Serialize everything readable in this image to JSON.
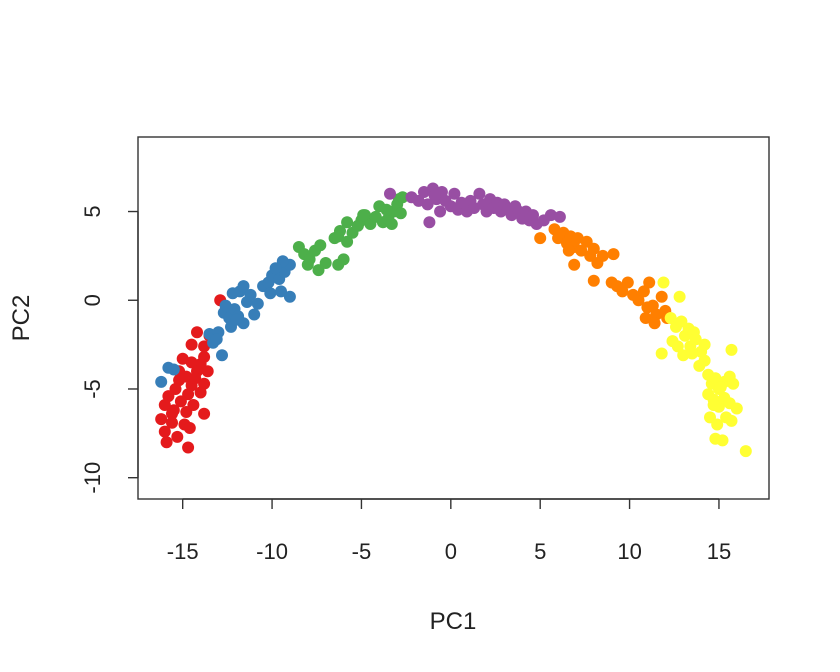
{
  "chart_data": {
    "type": "scatter",
    "title": "",
    "xlabel": "PC1",
    "ylabel": "PC2",
    "xlim": [
      -17.5,
      17.8
    ],
    "ylim": [
      -11.2,
      9.2
    ],
    "xticks": [
      -15,
      -10,
      -5,
      0,
      5,
      10,
      15
    ],
    "xtick_labels": [
      "-15",
      "-10",
      "-5",
      "0",
      "5",
      "10",
      "15"
    ],
    "yticks": [
      -10,
      -5,
      0,
      5
    ],
    "ytick_labels": [
      "-10",
      "-5",
      "0",
      "5"
    ],
    "grid": false,
    "legend": "none",
    "series": [
      {
        "color": "#e41a1c",
        "points": [
          [
            -12.9,
            0.0
          ],
          [
            -13.5,
            -2.0
          ],
          [
            -13.8,
            -2.6
          ],
          [
            -14.2,
            -1.8
          ],
          [
            -13.8,
            -3.2
          ],
          [
            -14.5,
            -2.5
          ],
          [
            -14.0,
            -3.6
          ],
          [
            -13.6,
            -4.0
          ],
          [
            -14.5,
            -3.5
          ],
          [
            -15.0,
            -3.3
          ],
          [
            -14.2,
            -4.0
          ],
          [
            -14.8,
            -4.3
          ],
          [
            -13.8,
            -4.7
          ],
          [
            -14.5,
            -4.8
          ],
          [
            -15.2,
            -4.5
          ],
          [
            -14.0,
            -5.2
          ],
          [
            -14.7,
            -5.3
          ],
          [
            -15.4,
            -5.0
          ],
          [
            -15.8,
            -5.4
          ],
          [
            -15.1,
            -5.7
          ],
          [
            -14.4,
            -5.9
          ],
          [
            -16.0,
            -5.9
          ],
          [
            -15.5,
            -6.2
          ],
          [
            -14.8,
            -6.3
          ],
          [
            -13.8,
            -6.4
          ],
          [
            -16.2,
            -6.7
          ],
          [
            -15.6,
            -6.9
          ],
          [
            -14.9,
            -7.0
          ],
          [
            -16.0,
            -7.4
          ],
          [
            -15.3,
            -7.7
          ],
          [
            -15.9,
            -8.0
          ],
          [
            -14.7,
            -8.3
          ],
          [
            -15.2,
            -4.0
          ],
          [
            -14.3,
            -4.4
          ],
          [
            -15.6,
            -6.4
          ],
          [
            -14.6,
            -7.2
          ]
        ]
      },
      {
        "color": "#377eb8",
        "points": [
          [
            -16.2,
            -4.6
          ],
          [
            -15.8,
            -3.8
          ],
          [
            -15.5,
            -3.9
          ],
          [
            -13.3,
            -2.4
          ],
          [
            -13.5,
            -1.9
          ],
          [
            -13.0,
            -1.8
          ],
          [
            -12.8,
            -3.1
          ],
          [
            -12.7,
            -0.7
          ],
          [
            -12.4,
            -1.0
          ],
          [
            -12.3,
            -1.5
          ],
          [
            -12.6,
            -0.3
          ],
          [
            -12.1,
            -0.5
          ],
          [
            -11.9,
            -0.9
          ],
          [
            -11.6,
            -1.3
          ],
          [
            -12.2,
            0.4
          ],
          [
            -11.8,
            0.5
          ],
          [
            -11.6,
            0.8
          ],
          [
            -11.2,
            0.3
          ],
          [
            -11.0,
            -0.8
          ],
          [
            -10.8,
            -0.2
          ],
          [
            -10.5,
            0.8
          ],
          [
            -10.2,
            1.0
          ],
          [
            -10.0,
            1.4
          ],
          [
            -9.6,
            1.2
          ],
          [
            -9.3,
            1.6
          ],
          [
            -9.0,
            2.0
          ],
          [
            -9.4,
            2.2
          ],
          [
            -9.8,
            1.8
          ],
          [
            -10.1,
            0.4
          ],
          [
            -9.5,
            0.5
          ],
          [
            -9.0,
            0.2
          ],
          [
            -11.4,
            -0.1
          ],
          [
            -12.0,
            -1.1
          ],
          [
            -13.1,
            -2.2
          ]
        ]
      },
      {
        "color": "#4daf4a",
        "points": [
          [
            -8.5,
            3.0
          ],
          [
            -8.2,
            2.6
          ],
          [
            -7.9,
            2.3
          ],
          [
            -7.6,
            2.8
          ],
          [
            -7.3,
            3.1
          ],
          [
            -7.0,
            2.1
          ],
          [
            -7.4,
            1.7
          ],
          [
            -8.0,
            2.0
          ],
          [
            -6.5,
            3.5
          ],
          [
            -6.2,
            3.9
          ],
          [
            -5.8,
            4.4
          ],
          [
            -6.3,
            3.6
          ],
          [
            -5.5,
            3.8
          ],
          [
            -5.8,
            3.3
          ],
          [
            -6.0,
            2.3
          ],
          [
            -6.3,
            2.0
          ],
          [
            -5.0,
            4.5
          ],
          [
            -4.8,
            4.8
          ],
          [
            -5.2,
            4.2
          ],
          [
            -4.5,
            4.3
          ],
          [
            -4.2,
            4.7
          ],
          [
            -4.0,
            5.3
          ],
          [
            -3.8,
            4.4
          ],
          [
            -3.5,
            4.6
          ],
          [
            -3.2,
            5.0
          ],
          [
            -3.0,
            5.4
          ],
          [
            -2.9,
            5.7
          ],
          [
            -2.7,
            5.8
          ],
          [
            -3.3,
            4.3
          ],
          [
            -3.6,
            5.1
          ],
          [
            -2.8,
            4.9
          ],
          [
            -4.9,
            4.8
          ]
        ]
      },
      {
        "color": "#984ea3",
        "points": [
          [
            -3.4,
            6.0
          ],
          [
            -2.2,
            5.8
          ],
          [
            -1.8,
            5.6
          ],
          [
            -1.5,
            6.1
          ],
          [
            -1.3,
            5.4
          ],
          [
            -1.0,
            6.3
          ],
          [
            -0.8,
            5.7
          ],
          [
            -0.6,
            5.0
          ],
          [
            -0.5,
            6.1
          ],
          [
            -0.3,
            5.6
          ],
          [
            -1.2,
            4.4
          ],
          [
            0.0,
            5.3
          ],
          [
            0.2,
            6.0
          ],
          [
            0.4,
            5.1
          ],
          [
            0.6,
            5.5
          ],
          [
            0.9,
            5.0
          ],
          [
            1.1,
            5.6
          ],
          [
            1.3,
            5.2
          ],
          [
            1.6,
            6.0
          ],
          [
            1.8,
            5.4
          ],
          [
            2.0,
            5.0
          ],
          [
            2.2,
            5.7
          ],
          [
            2.4,
            5.2
          ],
          [
            2.6,
            5.5
          ],
          [
            2.8,
            5.0
          ],
          [
            3.0,
            5.4
          ],
          [
            3.2,
            5.1
          ],
          [
            3.4,
            4.8
          ],
          [
            3.6,
            5.3
          ],
          [
            3.8,
            5.0
          ],
          [
            4.0,
            4.6
          ],
          [
            4.2,
            5.0
          ],
          [
            4.4,
            4.5
          ],
          [
            4.6,
            4.8
          ],
          [
            4.8,
            4.3
          ],
          [
            5.2,
            4.5
          ],
          [
            5.6,
            4.8
          ],
          [
            6.1,
            4.7
          ],
          [
            -0.9,
            5.9
          ]
        ]
      },
      {
        "color": "#ff7f00",
        "points": [
          [
            5.0,
            3.5
          ],
          [
            5.8,
            4.0
          ],
          [
            6.0,
            3.5
          ],
          [
            6.3,
            3.8
          ],
          [
            6.5,
            3.2
          ],
          [
            6.7,
            3.6
          ],
          [
            6.9,
            3.0
          ],
          [
            7.1,
            3.5
          ],
          [
            7.3,
            2.8
          ],
          [
            7.6,
            3.3
          ],
          [
            7.8,
            2.5
          ],
          [
            8.0,
            2.9
          ],
          [
            8.2,
            2.1
          ],
          [
            8.5,
            2.5
          ],
          [
            9.0,
            1.0
          ],
          [
            9.3,
            0.8
          ],
          [
            9.6,
            0.5
          ],
          [
            9.9,
            1.0
          ],
          [
            10.2,
            0.3
          ],
          [
            10.5,
            0.0
          ],
          [
            10.8,
            0.5
          ],
          [
            11.1,
            1.0
          ],
          [
            11.3,
            -0.3
          ],
          [
            11.5,
            -0.8
          ],
          [
            11.8,
            0.2
          ],
          [
            12.0,
            -0.6
          ],
          [
            10.9,
            -1.0
          ],
          [
            11.4,
            -1.3
          ],
          [
            12.1,
            -1.0
          ],
          [
            11.0,
            -0.4
          ],
          [
            6.9,
            2.0
          ],
          [
            8.0,
            1.1
          ],
          [
            9.1,
            2.6
          ],
          [
            6.6,
            2.8
          ]
        ]
      },
      {
        "color": "#ffff33",
        "points": [
          [
            11.9,
            1.0
          ],
          [
            12.8,
            0.2
          ],
          [
            12.3,
            -1.0
          ],
          [
            12.6,
            -1.5
          ],
          [
            12.9,
            -1.2
          ],
          [
            13.1,
            -2.0
          ],
          [
            13.3,
            -1.6
          ],
          [
            13.6,
            -1.8
          ],
          [
            12.4,
            -2.3
          ],
          [
            12.7,
            -2.6
          ],
          [
            13.0,
            -3.1
          ],
          [
            13.4,
            -2.6
          ],
          [
            13.7,
            -2.2
          ],
          [
            14.0,
            -2.9
          ],
          [
            13.9,
            -3.7
          ],
          [
            14.2,
            -3.4
          ],
          [
            11.8,
            -3.0
          ],
          [
            14.4,
            -4.2
          ],
          [
            14.6,
            -4.7
          ],
          [
            14.8,
            -4.4
          ],
          [
            15.0,
            -5.0
          ],
          [
            15.3,
            -4.6
          ],
          [
            15.6,
            -4.3
          ],
          [
            15.8,
            -4.7
          ],
          [
            14.4,
            -5.3
          ],
          [
            14.7,
            -5.6
          ],
          [
            15.0,
            -6.0
          ],
          [
            15.3,
            -5.5
          ],
          [
            15.6,
            -5.8
          ],
          [
            14.5,
            -6.6
          ],
          [
            14.9,
            -7.0
          ],
          [
            15.4,
            -6.6
          ],
          [
            16.0,
            -6.1
          ],
          [
            14.8,
            -7.8
          ],
          [
            15.2,
            -7.9
          ],
          [
            15.7,
            -6.8
          ],
          [
            16.5,
            -8.5
          ],
          [
            15.7,
            -2.8
          ],
          [
            13.5,
            -3.0
          ],
          [
            14.2,
            -2.5
          ],
          [
            15.1,
            -4.9
          ],
          [
            14.7,
            -5.9
          ]
        ]
      }
    ]
  }
}
